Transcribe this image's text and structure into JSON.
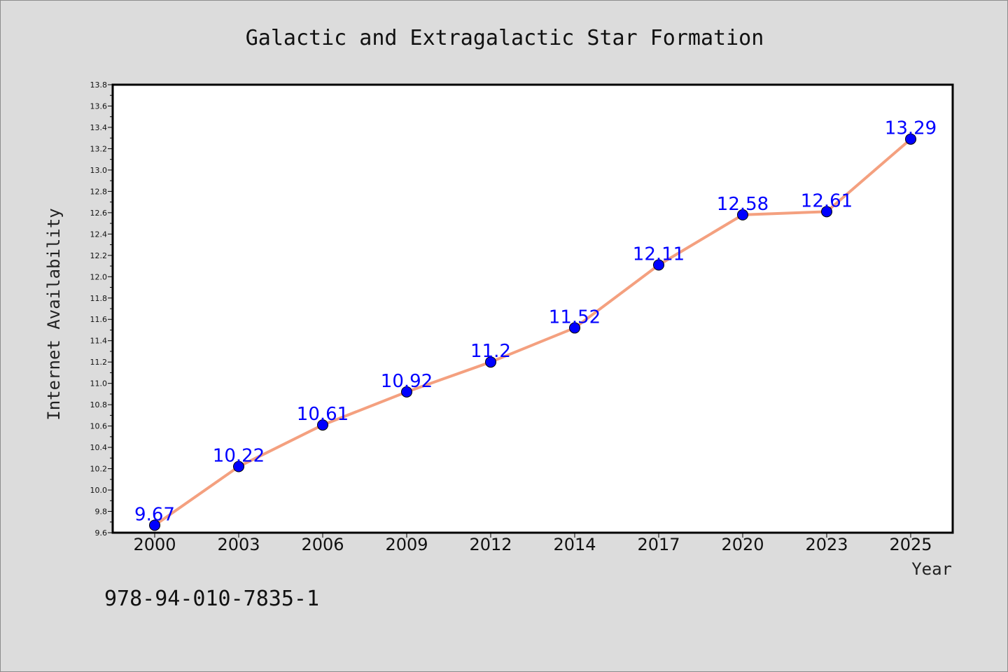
{
  "chart_data": {
    "type": "line",
    "title": "Galactic and Extragalactic Star Formation",
    "xlabel": "Year",
    "ylabel": "Internet Availability",
    "categories": [
      "2000",
      "2003",
      "2006",
      "2009",
      "2012",
      "2014",
      "2017",
      "2020",
      "2023",
      "2025"
    ],
    "series": [
      {
        "values": [
          9.67,
          10.22,
          10.61,
          10.92,
          11.2,
          11.52,
          12.11,
          12.58,
          12.61,
          13.29
        ]
      }
    ],
    "data_labels": [
      "9.67",
      "10.22",
      "10.61",
      "10.92",
      "11.2",
      "11.52",
      "12.11",
      "12.58",
      "12.61",
      "13.29"
    ],
    "ylim": [
      9.6,
      13.8
    ],
    "yticks": [
      9.6,
      9.8,
      10.0,
      10.2,
      10.4,
      10.6,
      10.8,
      11.0,
      11.2,
      11.4,
      11.6,
      11.8,
      12.0,
      12.2,
      12.4,
      12.6,
      12.8,
      13.0,
      13.2,
      13.4,
      13.6,
      13.8
    ],
    "grid": false,
    "legend": "none",
    "line_color": "#f4a07f",
    "marker_color": "#0000ff",
    "label_color": "#0000ff",
    "plot_background": "#ffffff",
    "page_background": "#dcdcdc"
  },
  "footer": {
    "isbn": "978-94-010-7835-1"
  }
}
